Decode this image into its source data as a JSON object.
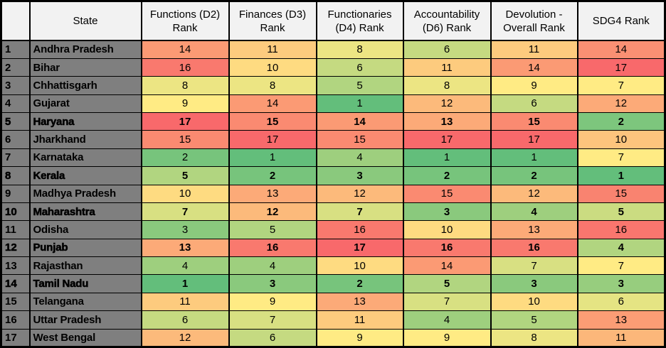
{
  "chart_data": {
    "type": "heatmap",
    "description": "State-wise rank table with red-yellow-green conditional formatting; rank 1 = green (best), rank 17 = red (worst)",
    "columns": [
      {
        "id": "row-number",
        "lines": [
          "",
          ""
        ]
      },
      {
        "id": "state",
        "lines": [
          "State",
          ""
        ]
      },
      {
        "id": "functions-d2-rank",
        "lines": [
          "Functions (D2)",
          "Rank"
        ]
      },
      {
        "id": "finances-d3-rank",
        "lines": [
          "Finances (D3)",
          "Rank"
        ]
      },
      {
        "id": "functionaries-d4-rank",
        "lines": [
          "Functionaries",
          "(D4) Rank"
        ]
      },
      {
        "id": "accountability-d6-rank",
        "lines": [
          "Accountability",
          "(D6) Rank"
        ]
      },
      {
        "id": "devolution-overall-rank",
        "lines": [
          "Devolution -",
          "Overall Rank"
        ]
      },
      {
        "id": "sdg4-rank",
        "lines": [
          "SDG4 Rank",
          ""
        ]
      }
    ],
    "value_columns": [
      "Functions (D2) Rank",
      "Finances (D3) Rank",
      "Functionaries (D4) Rank",
      "Accountability (D6) Rank",
      "Devolution - Overall Rank",
      "SDG4 Rank"
    ],
    "rows": [
      {
        "num": "1",
        "state": "Andhra Pradesh",
        "emphasis": false,
        "ranks": [
          14,
          11,
          8,
          6,
          11,
          14
        ]
      },
      {
        "num": "2",
        "state": "Bihar",
        "emphasis": false,
        "ranks": [
          16,
          10,
          6,
          11,
          14,
          17
        ]
      },
      {
        "num": "3",
        "state": "Chhattisgarh",
        "emphasis": false,
        "ranks": [
          8,
          8,
          5,
          8,
          9,
          7
        ]
      },
      {
        "num": "4",
        "state": "Gujarat",
        "emphasis": false,
        "ranks": [
          9,
          14,
          1,
          12,
          6,
          12
        ]
      },
      {
        "num": "5",
        "state": "Haryana",
        "emphasis": true,
        "ranks": [
          17,
          15,
          14,
          13,
          15,
          2
        ]
      },
      {
        "num": "6",
        "state": "Jharkhand",
        "emphasis": false,
        "ranks": [
          15,
          17,
          15,
          17,
          17,
          10
        ]
      },
      {
        "num": "7",
        "state": "Karnataka",
        "emphasis": false,
        "ranks": [
          2,
          1,
          4,
          1,
          1,
          7
        ]
      },
      {
        "num": "8",
        "state": "Kerala",
        "emphasis": true,
        "ranks": [
          5,
          2,
          3,
          2,
          2,
          1
        ]
      },
      {
        "num": "9",
        "state": "Madhya Pradesh",
        "emphasis": false,
        "ranks": [
          10,
          13,
          12,
          15,
          12,
          15
        ]
      },
      {
        "num": "10",
        "state": "Maharashtra",
        "emphasis": true,
        "ranks": [
          7,
          12,
          7,
          3,
          4,
          5
        ]
      },
      {
        "num": "11",
        "state": "Odisha",
        "emphasis": false,
        "ranks": [
          3,
          5,
          16,
          10,
          13,
          16
        ]
      },
      {
        "num": "12",
        "state": "Punjab",
        "emphasis": true,
        "ranks": [
          13,
          16,
          17,
          16,
          16,
          4
        ]
      },
      {
        "num": "13",
        "state": "Rajasthan",
        "emphasis": false,
        "ranks": [
          4,
          4,
          10,
          14,
          7,
          7
        ]
      },
      {
        "num": "14",
        "state": "Tamil Nadu",
        "emphasis": true,
        "ranks": [
          1,
          3,
          2,
          5,
          3,
          3
        ]
      },
      {
        "num": "15",
        "state": "Telangana",
        "emphasis": false,
        "ranks": [
          11,
          9,
          13,
          7,
          10,
          6
        ]
      },
      {
        "num": "16",
        "state": "Uttar Pradesh",
        "emphasis": false,
        "ranks": [
          6,
          7,
          11,
          4,
          5,
          13
        ]
      },
      {
        "num": "17",
        "state": "West Bengal",
        "emphasis": false,
        "ranks": [
          12,
          6,
          9,
          9,
          8,
          11
        ]
      }
    ],
    "color_scale": {
      "min_value": 1,
      "max_value": 17,
      "min_color": "#63BE7B",
      "mid_color": "#FFEB84",
      "max_color": "#F8696B",
      "column_midpoints": [
        9,
        9,
        9,
        9,
        9,
        7
      ]
    }
  },
  "styles": {
    "header_bg": "#F2F2F2",
    "label_bg": "#7F7F7F",
    "grid_color": "#000000",
    "text_color": "#000000"
  }
}
